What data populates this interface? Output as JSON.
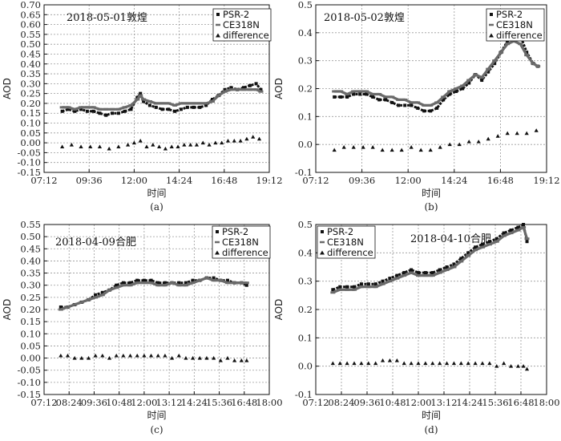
{
  "chart_data": [
    {
      "type": "scatter",
      "caption": "(a)",
      "title": "2018-05-01敦煌",
      "xlabel": "时间",
      "ylabel": "AOD",
      "ylim": [
        -0.15,
        0.7
      ],
      "yticks": [
        "0.70",
        "0.65",
        "0.60",
        "0.55",
        "0.50",
        "0.45",
        "0.40",
        "0.35",
        "0.30",
        "0.25",
        "0.20",
        "0.15",
        "0.10",
        "0.05",
        "0.00",
        "-0.05",
        "-0.10",
        "-0.15"
      ],
      "xticks": [
        "07:12",
        "09:36",
        "12:00",
        "14:24",
        "16:48",
        "19:12"
      ],
      "xlim": [
        "07:12",
        "19:12"
      ],
      "legend_position": "top-right",
      "grid": true,
      "series": [
        {
          "name": "PSR-2",
          "marker": "square",
          "x": [
            "08:10",
            "08:30",
            "08:50",
            "09:10",
            "09:30",
            "09:50",
            "10:10",
            "10:30",
            "10:50",
            "11:10",
            "11:30",
            "11:50",
            "12:10",
            "12:20",
            "12:30",
            "12:50",
            "13:10",
            "13:30",
            "13:50",
            "14:10",
            "14:30",
            "14:50",
            "15:10",
            "15:30",
            "15:50",
            "16:10",
            "16:30",
            "16:50",
            "17:10",
            "17:30",
            "17:50",
            "18:10",
            "18:30",
            "18:45"
          ],
          "y": [
            0.16,
            0.17,
            0.16,
            0.17,
            0.16,
            0.16,
            0.15,
            0.14,
            0.15,
            0.15,
            0.16,
            0.17,
            0.23,
            0.25,
            0.21,
            0.19,
            0.18,
            0.17,
            0.17,
            0.16,
            0.17,
            0.18,
            0.18,
            0.18,
            0.19,
            0.22,
            0.24,
            0.27,
            0.28,
            0.27,
            0.28,
            0.29,
            0.3,
            0.27
          ]
        },
        {
          "name": "CE318N",
          "marker": "dash",
          "x": [
            "08:10",
            "08:30",
            "08:50",
            "09:10",
            "09:30",
            "09:50",
            "10:10",
            "10:30",
            "10:50",
            "11:10",
            "11:30",
            "11:50",
            "12:10",
            "12:20",
            "12:30",
            "12:50",
            "13:10",
            "13:30",
            "13:50",
            "14:10",
            "14:30",
            "14:50",
            "15:10",
            "15:30",
            "15:50",
            "16:10",
            "16:30",
            "16:50",
            "17:10",
            "17:30",
            "17:50",
            "18:10",
            "18:30",
            "18:45"
          ],
          "y": [
            0.18,
            0.18,
            0.17,
            0.18,
            0.18,
            0.18,
            0.17,
            0.17,
            0.17,
            0.17,
            0.18,
            0.19,
            0.22,
            0.24,
            0.22,
            0.21,
            0.2,
            0.2,
            0.2,
            0.19,
            0.2,
            0.2,
            0.2,
            0.2,
            0.2,
            0.21,
            0.24,
            0.26,
            0.27,
            0.27,
            0.27,
            0.27,
            0.27,
            0.26
          ]
        },
        {
          "name": "difference",
          "marker": "triangle",
          "x": [
            "08:10",
            "08:40",
            "09:10",
            "09:40",
            "10:10",
            "10:40",
            "11:10",
            "11:40",
            "12:00",
            "12:20",
            "12:40",
            "13:00",
            "13:20",
            "13:40",
            "14:00",
            "14:20",
            "14:40",
            "15:00",
            "15:20",
            "15:40",
            "16:00",
            "16:20",
            "16:40",
            "17:00",
            "17:20",
            "17:40",
            "18:00",
            "18:20",
            "18:40"
          ],
          "y": [
            -0.02,
            -0.01,
            -0.02,
            -0.02,
            -0.02,
            -0.03,
            -0.02,
            -0.01,
            0.0,
            0.01,
            -0.02,
            -0.01,
            -0.02,
            -0.03,
            -0.02,
            -0.02,
            -0.01,
            -0.01,
            -0.01,
            0.0,
            -0.01,
            0.0,
            0.0,
            0.01,
            0.01,
            0.01,
            0.02,
            0.03,
            0.02
          ]
        }
      ]
    },
    {
      "type": "scatter",
      "caption": "(b)",
      "title": "2018-05-02敦煌",
      "xlabel": "时间",
      "ylabel": "AOD",
      "ylim": [
        -0.1,
        0.5
      ],
      "yticks": [
        "0.5",
        "0.4",
        "0.3",
        "0.2",
        "0.1",
        "0.0",
        "-0.1"
      ],
      "xticks": [
        "07:12",
        "09:36",
        "12:00",
        "14:24",
        "16:48",
        "19:12"
      ],
      "xlim": [
        "07:12",
        "19:12"
      ],
      "legend_position": "top-right",
      "grid": true,
      "series": [
        {
          "name": "PSR-2",
          "marker": "square",
          "x": [
            "08:10",
            "08:30",
            "08:50",
            "09:10",
            "09:30",
            "09:50",
            "10:10",
            "10:30",
            "10:50",
            "11:10",
            "11:30",
            "11:50",
            "12:10",
            "12:30",
            "12:50",
            "13:10",
            "13:30",
            "13:50",
            "14:10",
            "14:30",
            "14:50",
            "15:10",
            "15:30",
            "15:50",
            "16:10",
            "16:30",
            "16:50",
            "17:10",
            "17:30",
            "17:50",
            "18:10",
            "18:30",
            "18:45"
          ],
          "y": [
            0.17,
            0.17,
            0.17,
            0.18,
            0.18,
            0.18,
            0.17,
            0.16,
            0.16,
            0.15,
            0.14,
            0.14,
            0.14,
            0.13,
            0.12,
            0.12,
            0.13,
            0.16,
            0.18,
            0.19,
            0.2,
            0.22,
            0.25,
            0.23,
            0.26,
            0.29,
            0.33,
            0.37,
            0.4,
            0.39,
            0.33,
            0.29,
            0.28
          ]
        },
        {
          "name": "CE318N",
          "marker": "dash",
          "x": [
            "08:10",
            "08:30",
            "08:50",
            "09:10",
            "09:30",
            "09:50",
            "10:10",
            "10:30",
            "10:50",
            "11:10",
            "11:30",
            "11:50",
            "12:10",
            "12:30",
            "12:50",
            "13:10",
            "13:30",
            "13:50",
            "14:10",
            "14:30",
            "14:50",
            "15:10",
            "15:30",
            "15:50",
            "16:10",
            "16:30",
            "16:50",
            "17:10",
            "17:30",
            "17:50",
            "18:10",
            "18:30",
            "18:45"
          ],
          "y": [
            0.19,
            0.19,
            0.18,
            0.19,
            0.19,
            0.19,
            0.18,
            0.18,
            0.17,
            0.17,
            0.16,
            0.16,
            0.15,
            0.15,
            0.14,
            0.14,
            0.15,
            0.17,
            0.19,
            0.2,
            0.21,
            0.23,
            0.25,
            0.24,
            0.27,
            0.3,
            0.33,
            0.36,
            0.37,
            0.36,
            0.32,
            0.29,
            0.28
          ]
        },
        {
          "name": "difference",
          "marker": "triangle",
          "x": [
            "08:10",
            "08:40",
            "09:10",
            "09:40",
            "10:10",
            "10:40",
            "11:10",
            "11:40",
            "12:10",
            "12:40",
            "13:10",
            "13:40",
            "14:10",
            "14:40",
            "15:10",
            "15:40",
            "16:10",
            "16:40",
            "17:10",
            "17:40",
            "18:10",
            "18:40"
          ],
          "y": [
            -0.02,
            -0.01,
            -0.01,
            -0.01,
            -0.01,
            -0.02,
            -0.02,
            -0.02,
            -0.01,
            -0.02,
            -0.02,
            -0.01,
            0.0,
            0.0,
            0.01,
            0.01,
            0.02,
            0.03,
            0.04,
            0.04,
            0.04,
            0.05
          ]
        }
      ]
    },
    {
      "type": "scatter",
      "caption": "(c)",
      "title": "2018-04-09合肥",
      "xlabel": "时间",
      "ylabel": "AOD",
      "ylim": [
        -0.15,
        0.55
      ],
      "yticks": [
        "0.55",
        "0.50",
        "0.45",
        "0.40",
        "0.35",
        "0.30",
        "0.25",
        "0.20",
        "0.15",
        "0.10",
        "0.05",
        "0.00",
        "-0.05",
        "-0.10",
        "-0.15"
      ],
      "xticks": [
        "07:12",
        "08:24",
        "09:36",
        "10:48",
        "12:00",
        "13:12",
        "14:24",
        "15:36",
        "16:48",
        "18:00"
      ],
      "xlim": [
        "07:12",
        "18:00"
      ],
      "legend_position": "top-right",
      "grid": true,
      "series": [
        {
          "name": "PSR-2",
          "marker": "square",
          "x": [
            "08:00",
            "08:20",
            "08:40",
            "09:00",
            "09:20",
            "09:40",
            "10:00",
            "10:20",
            "10:40",
            "11:00",
            "11:20",
            "11:40",
            "12:00",
            "12:20",
            "12:40",
            "13:00",
            "13:20",
            "13:40",
            "14:00",
            "14:20",
            "14:40",
            "15:00",
            "15:20",
            "15:40",
            "16:00",
            "16:20",
            "16:40",
            "16:55"
          ],
          "y": [
            0.21,
            0.21,
            0.22,
            0.23,
            0.24,
            0.26,
            0.27,
            0.28,
            0.3,
            0.31,
            0.31,
            0.32,
            0.32,
            0.32,
            0.31,
            0.31,
            0.31,
            0.31,
            0.31,
            0.32,
            0.32,
            0.33,
            0.33,
            0.32,
            0.32,
            0.31,
            0.31,
            0.3
          ]
        },
        {
          "name": "CE318N",
          "marker": "dash",
          "x": [
            "08:00",
            "08:20",
            "08:40",
            "09:00",
            "09:20",
            "09:40",
            "10:00",
            "10:20",
            "10:40",
            "11:00",
            "11:20",
            "11:40",
            "12:00",
            "12:20",
            "12:40",
            "13:00",
            "13:20",
            "13:40",
            "14:00",
            "14:20",
            "14:40",
            "15:00",
            "15:20",
            "15:40",
            "16:00",
            "16:20",
            "16:40",
            "16:55"
          ],
          "y": [
            0.2,
            0.21,
            0.22,
            0.23,
            0.24,
            0.25,
            0.26,
            0.28,
            0.29,
            0.3,
            0.3,
            0.31,
            0.31,
            0.31,
            0.3,
            0.3,
            0.31,
            0.3,
            0.3,
            0.31,
            0.32,
            0.33,
            0.32,
            0.32,
            0.31,
            0.31,
            0.31,
            0.31
          ]
        },
        {
          "name": "difference",
          "marker": "triangle",
          "x": [
            "08:00",
            "08:20",
            "08:40",
            "09:00",
            "09:20",
            "09:40",
            "10:00",
            "10:20",
            "10:40",
            "11:00",
            "11:20",
            "11:40",
            "12:00",
            "12:20",
            "12:40",
            "13:00",
            "13:20",
            "13:40",
            "14:00",
            "14:20",
            "14:40",
            "15:00",
            "15:20",
            "15:40",
            "16:00",
            "16:20",
            "16:40",
            "16:55"
          ],
          "y": [
            0.01,
            0.01,
            0.0,
            0.0,
            0.0,
            0.01,
            0.01,
            0.0,
            0.01,
            0.01,
            0.01,
            0.01,
            0.01,
            0.01,
            0.01,
            0.01,
            0.0,
            0.01,
            0.0,
            0.0,
            0.0,
            0.0,
            0.0,
            -0.01,
            0.0,
            -0.01,
            -0.01,
            -0.01
          ]
        }
      ]
    },
    {
      "type": "scatter",
      "caption": "(d)",
      "title": "2018-04-10合肥",
      "xlabel": "时间",
      "ylabel": "AOD",
      "ylim": [
        -0.1,
        0.5
      ],
      "yticks": [
        "0.5",
        "0.4",
        "0.3",
        "0.2",
        "0.1",
        "0.0",
        "-0.1"
      ],
      "xticks": [
        "07:12",
        "08:24",
        "09:36",
        "10:48",
        "12:00",
        "13:12",
        "14:24",
        "15:36",
        "16:48",
        "18:00"
      ],
      "xlim": [
        "07:12",
        "18:00"
      ],
      "legend_position": "top-left",
      "grid": true,
      "series": [
        {
          "name": "PSR-2",
          "marker": "square",
          "x": [
            "08:00",
            "08:20",
            "08:40",
            "09:00",
            "09:20",
            "09:40",
            "10:00",
            "10:20",
            "10:40",
            "11:00",
            "11:20",
            "11:40",
            "12:00",
            "12:20",
            "12:40",
            "13:00",
            "13:20",
            "13:40",
            "14:00",
            "14:20",
            "14:40",
            "15:00",
            "15:20",
            "15:40",
            "16:00",
            "16:20",
            "16:40",
            "16:55",
            "17:05"
          ],
          "y": [
            0.27,
            0.28,
            0.28,
            0.28,
            0.29,
            0.29,
            0.29,
            0.3,
            0.31,
            0.32,
            0.33,
            0.34,
            0.33,
            0.33,
            0.33,
            0.34,
            0.35,
            0.36,
            0.38,
            0.4,
            0.42,
            0.43,
            0.44,
            0.45,
            0.47,
            0.48,
            0.49,
            0.5,
            0.44
          ]
        },
        {
          "name": "CE318N",
          "marker": "dash",
          "x": [
            "08:00",
            "08:20",
            "08:40",
            "09:00",
            "09:20",
            "09:40",
            "10:00",
            "10:20",
            "10:40",
            "11:00",
            "11:20",
            "11:40",
            "12:00",
            "12:20",
            "12:40",
            "13:00",
            "13:20",
            "13:40",
            "14:00",
            "14:20",
            "14:40",
            "15:00",
            "15:20",
            "15:40",
            "16:00",
            "16:20",
            "16:40",
            "16:55",
            "17:05"
          ],
          "y": [
            0.26,
            0.27,
            0.27,
            0.27,
            0.28,
            0.28,
            0.28,
            0.29,
            0.3,
            0.31,
            0.32,
            0.33,
            0.32,
            0.32,
            0.32,
            0.33,
            0.34,
            0.35,
            0.37,
            0.39,
            0.41,
            0.42,
            0.43,
            0.44,
            0.46,
            0.47,
            0.48,
            0.49,
            0.45
          ]
        },
        {
          "name": "difference",
          "marker": "triangle",
          "x": [
            "08:00",
            "08:20",
            "08:40",
            "09:00",
            "09:20",
            "09:40",
            "10:00",
            "10:20",
            "10:40",
            "11:00",
            "11:20",
            "11:40",
            "12:00",
            "12:20",
            "12:40",
            "13:00",
            "13:20",
            "13:40",
            "14:00",
            "14:20",
            "14:40",
            "15:00",
            "15:20",
            "15:40",
            "16:00",
            "16:20",
            "16:40",
            "16:55",
            "17:05"
          ],
          "y": [
            0.01,
            0.01,
            0.01,
            0.01,
            0.01,
            0.01,
            0.01,
            0.02,
            0.02,
            0.02,
            0.01,
            0.01,
            0.01,
            0.01,
            0.01,
            0.01,
            0.01,
            0.01,
            0.01,
            0.01,
            0.01,
            0.01,
            0.01,
            0.0,
            0.01,
            0.0,
            0.0,
            0.0,
            -0.01
          ]
        }
      ]
    }
  ]
}
